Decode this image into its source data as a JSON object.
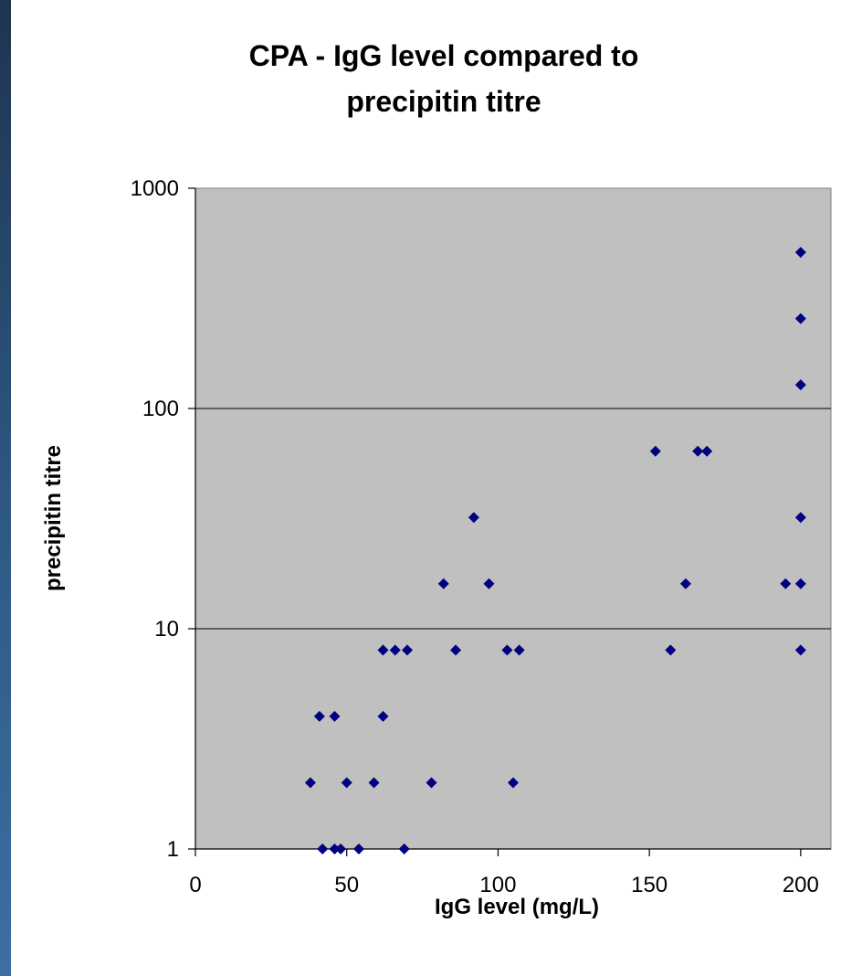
{
  "chart_data": {
    "type": "scatter",
    "title": [
      "CPA - IgG level compared to",
      "precipitin titre"
    ],
    "xlabel": "IgG level (mg/L)",
    "ylabel": "precipitin titre",
    "xlim": [
      0,
      210
    ],
    "ylim": [
      1,
      1000
    ],
    "yscale": "log",
    "x_ticks": [
      0,
      50,
      100,
      150,
      200
    ],
    "y_ticks": [
      1,
      10,
      100,
      1000
    ],
    "grid": "horizontal",
    "legend": "none",
    "colors": {
      "plot_bg": "#c0c0c0",
      "marker": "#000080",
      "grid": "#000000"
    },
    "points": [
      {
        "x": 38,
        "y": 2
      },
      {
        "x": 41,
        "y": 4
      },
      {
        "x": 42,
        "y": 1
      },
      {
        "x": 46,
        "y": 4
      },
      {
        "x": 46,
        "y": 1
      },
      {
        "x": 48,
        "y": 1
      },
      {
        "x": 50,
        "y": 2
      },
      {
        "x": 54,
        "y": 1
      },
      {
        "x": 59,
        "y": 2
      },
      {
        "x": 62,
        "y": 4
      },
      {
        "x": 62,
        "y": 8
      },
      {
        "x": 66,
        "y": 8
      },
      {
        "x": 69,
        "y": 1
      },
      {
        "x": 70,
        "y": 8
      },
      {
        "x": 78,
        "y": 2
      },
      {
        "x": 82,
        "y": 16
      },
      {
        "x": 86,
        "y": 8
      },
      {
        "x": 92,
        "y": 32
      },
      {
        "x": 97,
        "y": 16
      },
      {
        "x": 103,
        "y": 8
      },
      {
        "x": 105,
        "y": 2
      },
      {
        "x": 107,
        "y": 8
      },
      {
        "x": 152,
        "y": 64
      },
      {
        "x": 157,
        "y": 8
      },
      {
        "x": 162,
        "y": 16
      },
      {
        "x": 166,
        "y": 64
      },
      {
        "x": 169,
        "y": 64
      },
      {
        "x": 195,
        "y": 16
      },
      {
        "x": 200,
        "y": 512
      },
      {
        "x": 200,
        "y": 256
      },
      {
        "x": 200,
        "y": 128
      },
      {
        "x": 200,
        "y": 32
      },
      {
        "x": 200,
        "y": 16
      },
      {
        "x": 200,
        "y": 8
      }
    ]
  }
}
